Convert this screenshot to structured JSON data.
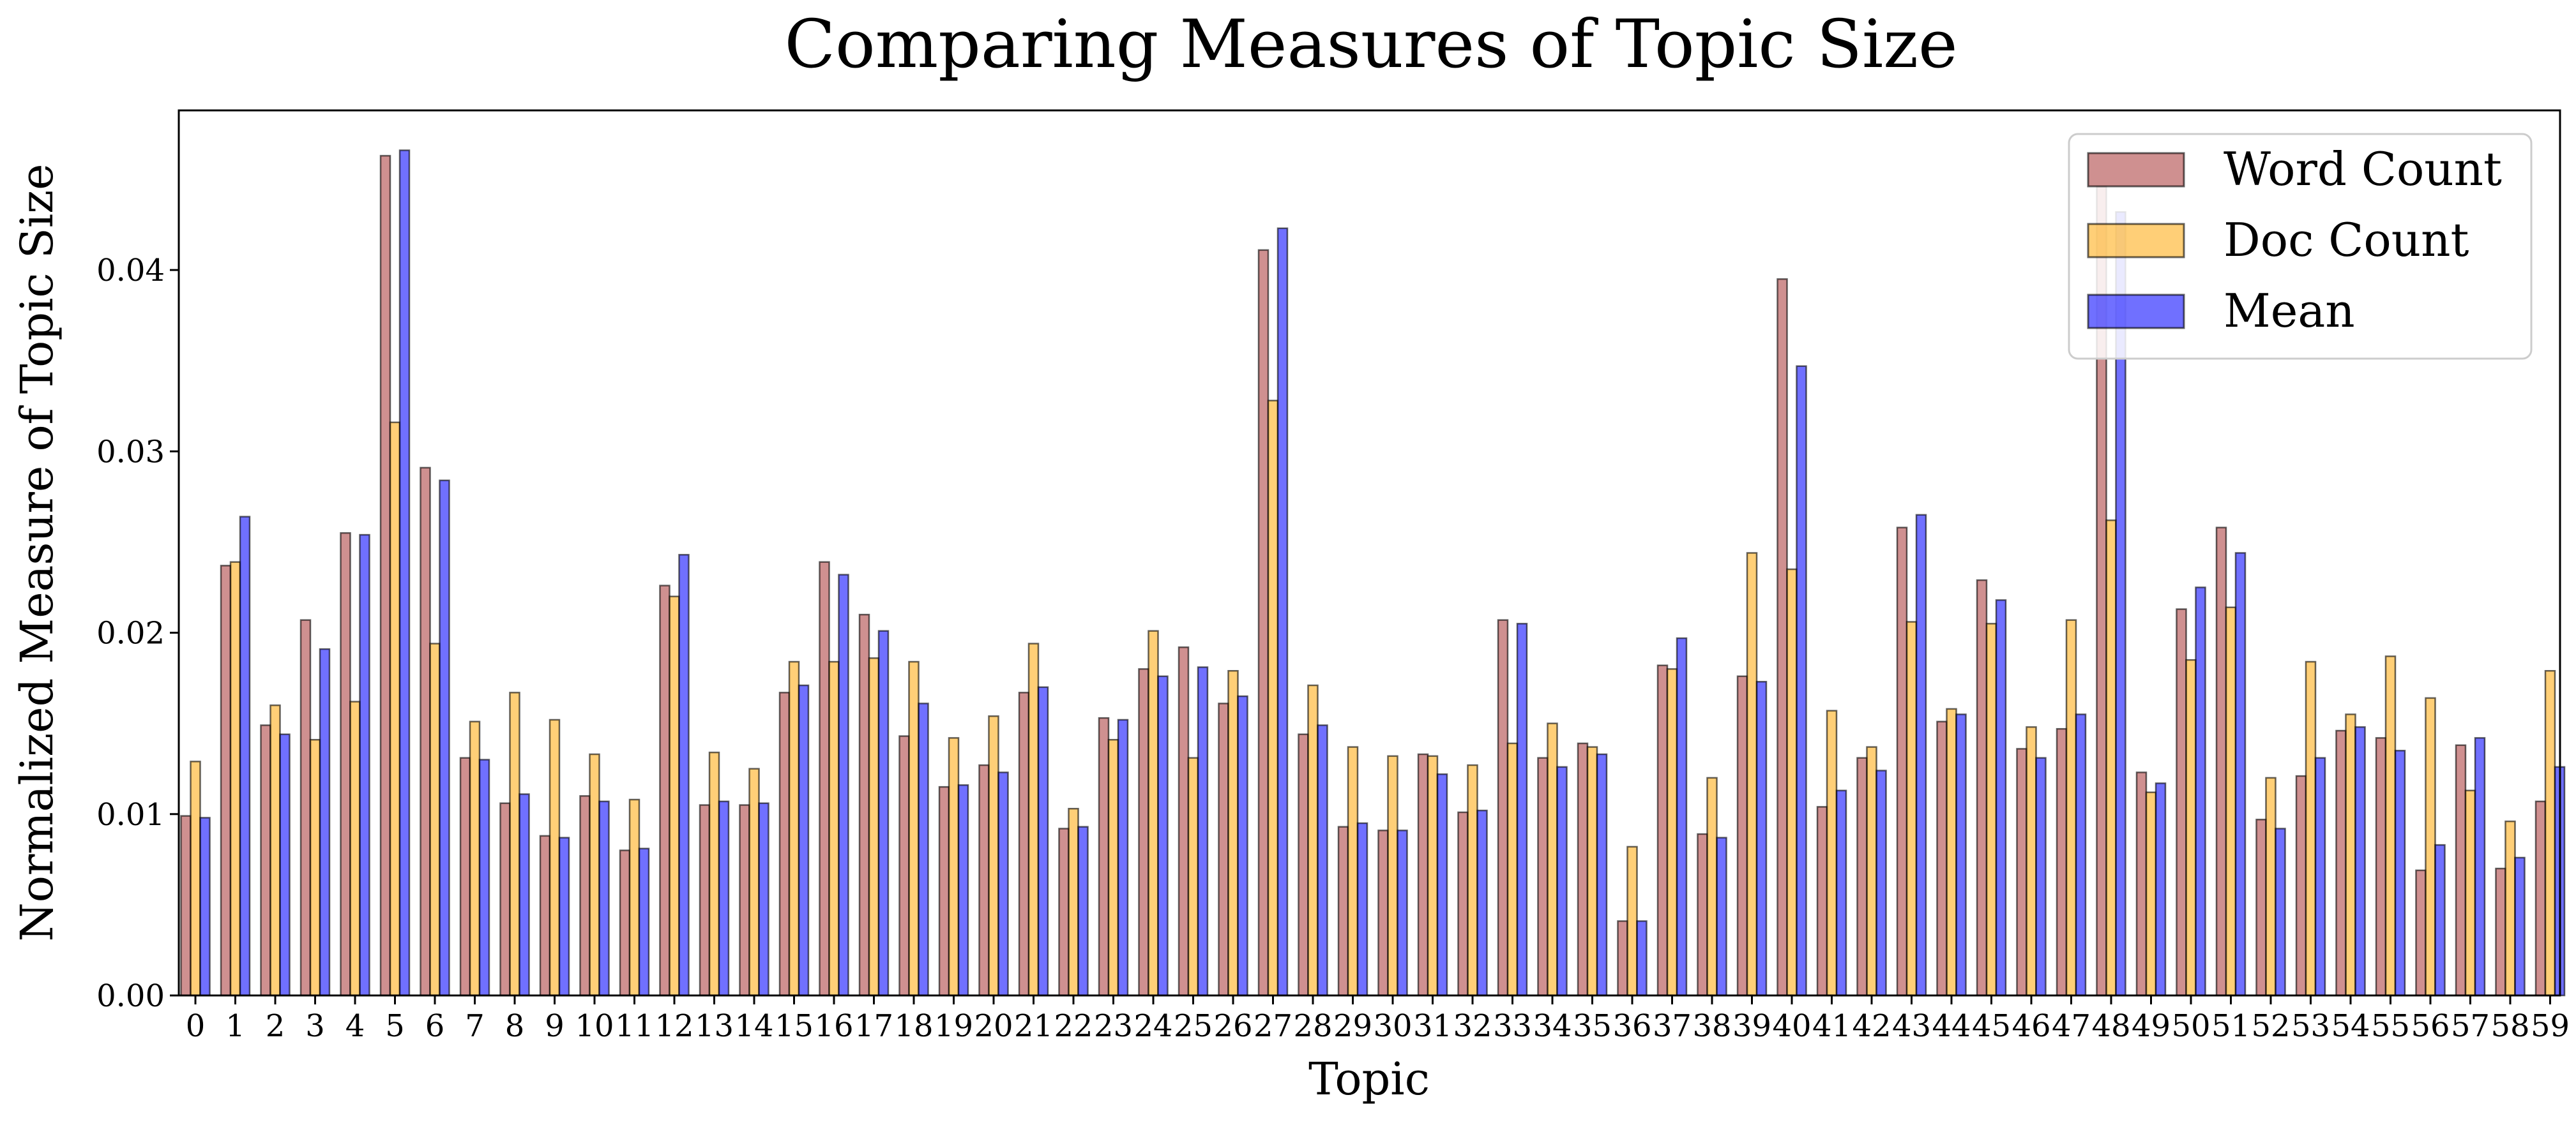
{
  "chart_data": {
    "type": "bar",
    "title": "Comparing Measures of Topic Size",
    "xlabel": "Topic",
    "ylabel": "Normalized Measure of Topic Size",
    "ylim": [
      0,
      0.0488
    ],
    "yticks": [
      "0.00",
      "0.01",
      "0.02",
      "0.03",
      "0.04"
    ],
    "categories": [
      "0",
      "1",
      "2",
      "3",
      "4",
      "5",
      "6",
      "7",
      "8",
      "9",
      "10",
      "11",
      "12",
      "13",
      "14",
      "15",
      "16",
      "17",
      "18",
      "19",
      "20",
      "21",
      "22",
      "23",
      "24",
      "25",
      "26",
      "27",
      "28",
      "29",
      "30",
      "31",
      "32",
      "33",
      "34",
      "35",
      "36",
      "37",
      "38",
      "39",
      "40",
      "41",
      "42",
      "43",
      "44",
      "45",
      "46",
      "47",
      "48",
      "49",
      "50",
      "51",
      "52",
      "53",
      "54",
      "55",
      "56",
      "57",
      "58",
      "59"
    ],
    "legend_position": "top-right",
    "grid": false,
    "series": [
      {
        "name": "Word Count",
        "color": "#b55454",
        "values": [
          0.0099,
          0.0237,
          0.0149,
          0.0207,
          0.0255,
          0.0463,
          0.0291,
          0.0131,
          0.0106,
          0.0088,
          0.011,
          0.008,
          0.0226,
          0.0105,
          0.0105,
          0.0167,
          0.0239,
          0.021,
          0.0143,
          0.0115,
          0.0127,
          0.0167,
          0.0092,
          0.0153,
          0.018,
          0.0192,
          0.0161,
          0.0411,
          0.0144,
          0.0093,
          0.0091,
          0.0133,
          0.0101,
          0.0207,
          0.0131,
          0.0139,
          0.0041,
          0.0182,
          0.0089,
          0.0176,
          0.0395,
          0.0104,
          0.0131,
          0.0258,
          0.0151,
          0.0229,
          0.0136,
          0.0147,
          0.0446,
          0.0123,
          0.0213,
          0.0258,
          0.0097,
          0.0121,
          0.0146,
          0.0142,
          0.0069,
          0.0138,
          0.007,
          0.0107
        ]
      },
      {
        "name": "Doc Count",
        "color": "#ffb52e",
        "values": [
          0.0129,
          0.0239,
          0.016,
          0.0141,
          0.0162,
          0.0316,
          0.0194,
          0.0151,
          0.0167,
          0.0152,
          0.0133,
          0.0108,
          0.022,
          0.0134,
          0.0125,
          0.0184,
          0.0184,
          0.0186,
          0.0184,
          0.0142,
          0.0154,
          0.0194,
          0.0103,
          0.0141,
          0.0201,
          0.0131,
          0.0179,
          0.0328,
          0.0171,
          0.0137,
          0.0132,
          0.0132,
          0.0127,
          0.0139,
          0.015,
          0.0137,
          0.0082,
          0.018,
          0.012,
          0.0244,
          0.0235,
          0.0157,
          0.0137,
          0.0206,
          0.0158,
          0.0205,
          0.0148,
          0.0207,
          0.0262,
          0.0112,
          0.0185,
          0.0214,
          0.012,
          0.0184,
          0.0155,
          0.0187,
          0.0164,
          0.0113,
          0.0096,
          0.0179
        ]
      },
      {
        "name": "Mean",
        "color": "#2424ff",
        "values": [
          0.0098,
          0.0264,
          0.0144,
          0.0191,
          0.0254,
          0.0466,
          0.0284,
          0.013,
          0.0111,
          0.0087,
          0.0107,
          0.0081,
          0.0243,
          0.0107,
          0.0106,
          0.0171,
          0.0232,
          0.0201,
          0.0161,
          0.0116,
          0.0123,
          0.017,
          0.0093,
          0.0152,
          0.0176,
          0.0181,
          0.0165,
          0.0423,
          0.0149,
          0.0095,
          0.0091,
          0.0122,
          0.0102,
          0.0205,
          0.0126,
          0.0133,
          0.0041,
          0.0197,
          0.0087,
          0.0173,
          0.0347,
          0.0113,
          0.0124,
          0.0265,
          0.0155,
          0.0218,
          0.0131,
          0.0155,
          0.0432,
          0.0117,
          0.0225,
          0.0244,
          0.0092,
          0.0131,
          0.0148,
          0.0135,
          0.0083,
          0.0142,
          0.0076,
          0.0126
        ]
      }
    ]
  }
}
